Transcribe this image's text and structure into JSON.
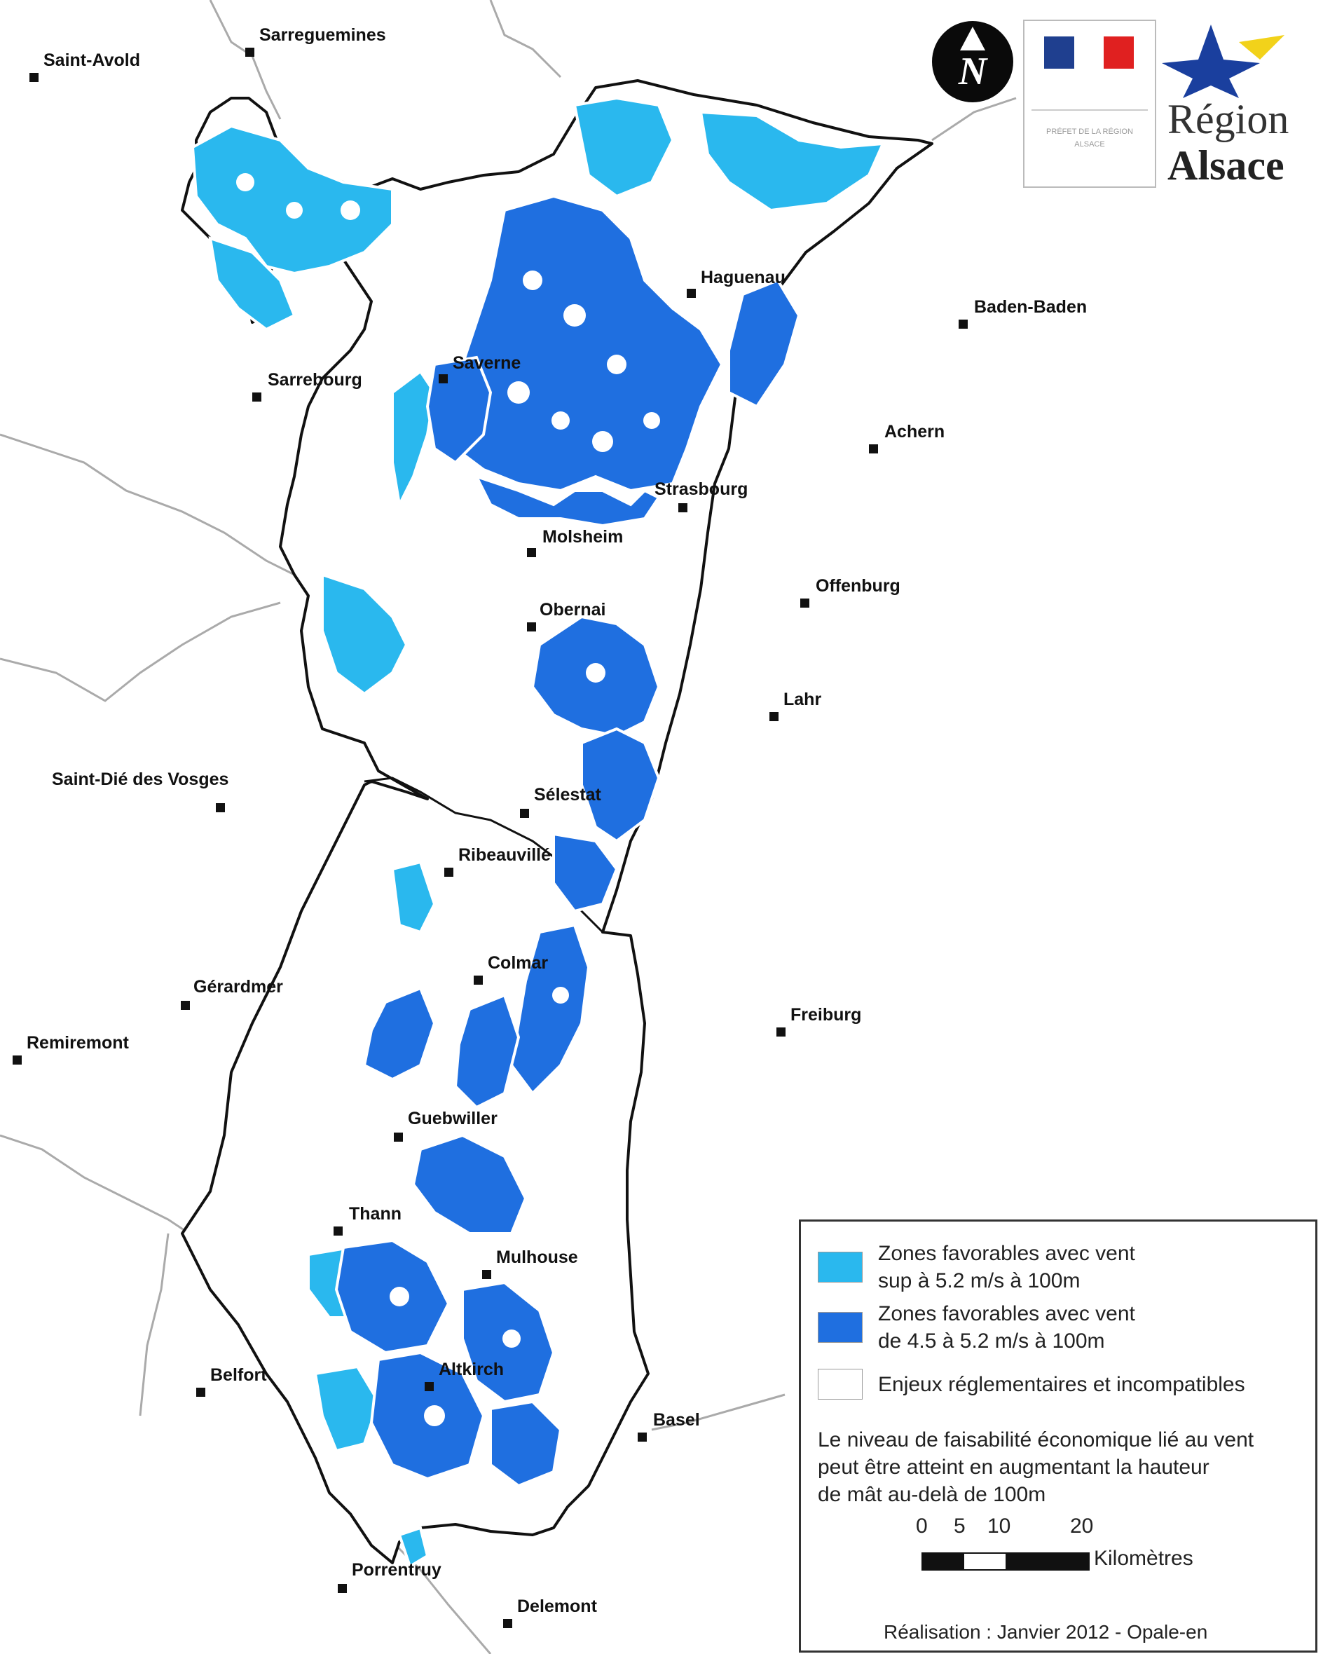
{
  "map": {
    "colors": {
      "favorable_high_wind": "#2ab8ee",
      "favorable_medium_wind": "#1f6fe0",
      "constrained": "#ffffff",
      "outline": "#111111",
      "external_boundary": "#aaaaaa"
    },
    "cities": [
      {
        "name": "Sarreguemines"
      },
      {
        "name": "Saint-Avold"
      },
      {
        "name": "Haguenau"
      },
      {
        "name": "Baden-Baden"
      },
      {
        "name": "Saverne"
      },
      {
        "name": "Sarrebourg"
      },
      {
        "name": "Achern"
      },
      {
        "name": "Strasbourg"
      },
      {
        "name": "Molsheim"
      },
      {
        "name": "Offenburg"
      },
      {
        "name": "Obernai"
      },
      {
        "name": "Lahr"
      },
      {
        "name": "Saint-Dié des Vosges"
      },
      {
        "name": "Sélestat"
      },
      {
        "name": "Ribeauvillé"
      },
      {
        "name": "Colmar"
      },
      {
        "name": "Gérardmer"
      },
      {
        "name": "Freiburg"
      },
      {
        "name": "Remiremont"
      },
      {
        "name": "Guebwiller"
      },
      {
        "name": "Thann"
      },
      {
        "name": "Mulhouse"
      },
      {
        "name": "Belfort"
      },
      {
        "name": "Altkirch"
      },
      {
        "name": "Basel"
      },
      {
        "name": "Porrentruy"
      },
      {
        "name": "Delemont"
      }
    ]
  },
  "logos": {
    "north_arrow_letter": "N",
    "prefecture_text": "PRÉFET DE LA RÉGION ALSACE",
    "region_name": "Région",
    "region_sub": "Alsace",
    "flag_colors": [
      "#1f3f8f",
      "#ffffff",
      "#e02020"
    ]
  },
  "legend": {
    "items": [
      {
        "label_line1": "Zones favorables avec vent",
        "label_line2": "sup à 5.2 m/s à 100m",
        "color": "#2ab8ee"
      },
      {
        "label_line1": "Zones favorables avec vent",
        "label_line2": "de 4.5 à 5.2 m/s à 100m",
        "color": "#1f6fe0"
      },
      {
        "label_line1": "Enjeux réglementaires et incompatibles",
        "label_line2": "",
        "color": "#ffffff"
      }
    ],
    "note_line1": "Le niveau de faisabilité économique lié au vent",
    "note_line2": "peut être atteint en augmentant la hauteur",
    "note_line3": "de mât au-delà de 100m",
    "scale": {
      "ticks": [
        "0",
        "5",
        "10",
        "20"
      ],
      "unit": "Kilomètres"
    },
    "credits": "Réalisation : Janvier 2012 - Opale-en"
  }
}
